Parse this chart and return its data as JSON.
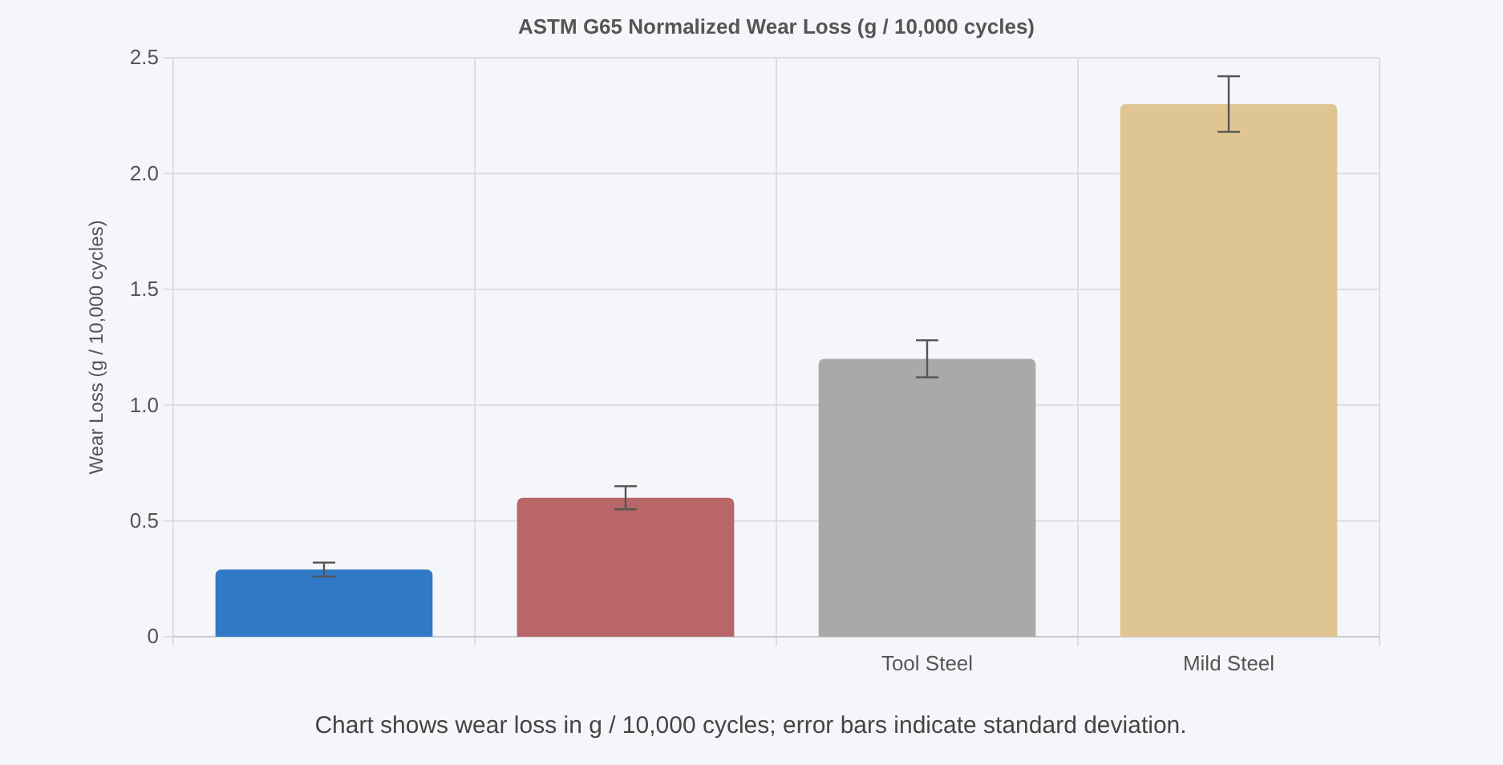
{
  "chart_data": {
    "type": "bar",
    "title": "ASTM G65 Normalized Wear Loss (g / 10,000 cycles)",
    "ylabel": "Wear Loss (g / 10,000 cycles)",
    "categories": [
      null,
      null,
      "Tool Steel",
      "Mild Steel"
    ],
    "values": [
      0.29,
      0.6,
      1.2,
      2.3
    ],
    "colors": [
      "#3179c5",
      "#b86667",
      "#a9a9aa",
      "#dfc591"
    ],
    "errors": [
      0.03,
      0.05,
      0.08,
      0.12
    ],
    "ylim": [
      0,
      2.5
    ],
    "yticks": [
      0,
      {
        "value": 0.5,
        "label": "0.5"
      },
      {
        "value": 1,
        "label": "1.0"
      },
      {
        "value": 1.5,
        "label": "1.5"
      },
      {
        "value": 2,
        "label": "2.0"
      },
      {
        "value": 2.5,
        "label": "2.5"
      }
    ],
    "grid": true,
    "annotations": [
      "Chart shows wear loss in g / 10,000 cycles; error bars indicate standard deviation."
    ]
  }
}
